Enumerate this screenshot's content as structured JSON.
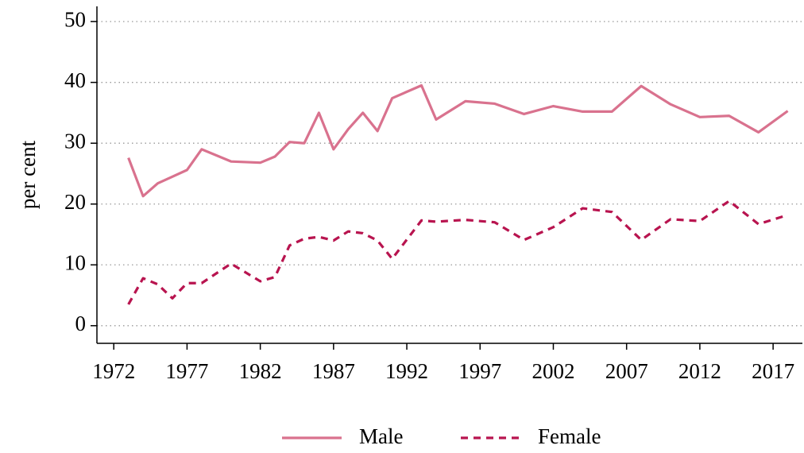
{
  "chart_data": {
    "type": "line",
    "y_label": "per cent",
    "x": [
      1973,
      1974,
      1975,
      1976,
      1977,
      1978,
      1980,
      1982,
      1983,
      1984,
      1985,
      1986,
      1987,
      1988,
      1989,
      1990,
      1991,
      1993,
      1994,
      1996,
      1998,
      2000,
      2002,
      2004,
      2006,
      2008,
      2010,
      2012,
      2014,
      2016,
      2018
    ],
    "series": [
      {
        "name": "Male",
        "color": "#d9728e",
        "linestyle": "solid",
        "values": [
          27.6,
          21.3,
          23.4,
          24.5,
          25.6,
          29.0,
          27.0,
          26.8,
          27.8,
          30.2,
          30.0,
          35.0,
          29.0,
          32.3,
          35.0,
          32.0,
          37.4,
          39.5,
          33.9,
          36.9,
          36.5,
          34.8,
          36.1,
          35.2,
          35.2,
          39.4,
          36.4,
          34.3,
          34.5,
          31.8,
          35.3
        ]
      },
      {
        "name": "Female",
        "color": "#b8144f",
        "linestyle": "dashed",
        "values": [
          3.5,
          7.8,
          6.8,
          4.5,
          7.0,
          7.0,
          10.2,
          7.3,
          8.0,
          13.2,
          14.3,
          14.6,
          14.0,
          15.5,
          15.2,
          14.0,
          11.0,
          17.3,
          17.1,
          17.4,
          17.0,
          14.1,
          16.2,
          19.3,
          18.7,
          14.1,
          17.5,
          17.2,
          20.5,
          16.7,
          18.2
        ]
      }
    ],
    "xlim": [
      1970.85,
      2019
    ],
    "xticks": [
      1972,
      1977,
      1982,
      1987,
      1992,
      1997,
      2002,
      2007,
      2012,
      2017
    ],
    "ylim": [
      -2.9,
      52.5
    ],
    "yticks": [
      0,
      10,
      20,
      30,
      40,
      50
    ],
    "grid": true,
    "legend": "bottom"
  }
}
